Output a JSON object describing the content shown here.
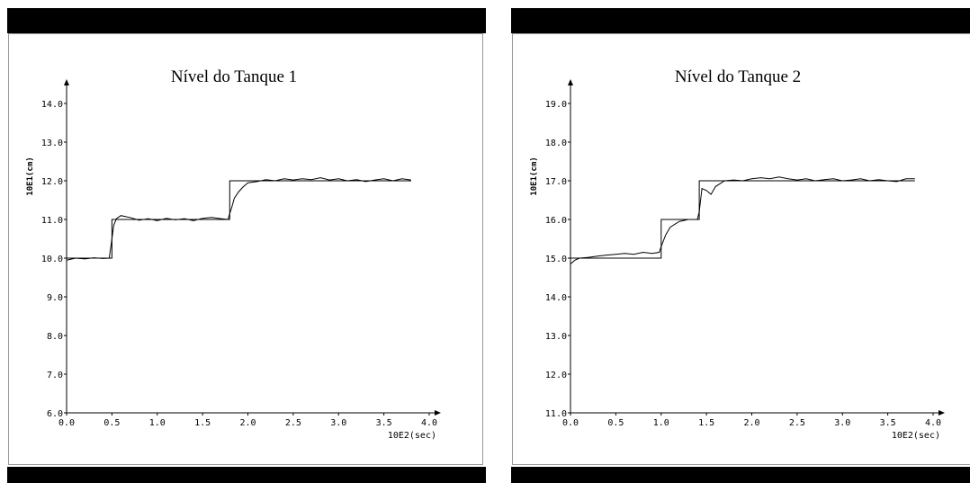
{
  "chart_data": [
    {
      "type": "line",
      "title": "Nível do Tanque 1",
      "ylabel": "10E1(cm)",
      "xlabel": "10E2(sec)",
      "xlim": [
        0.0,
        4.0
      ],
      "ylim": [
        6.0,
        14.0
      ],
      "x_ticks": [
        "0.0",
        "0.5",
        "1.0",
        "1.5",
        "2.0",
        "2.5",
        "3.0",
        "3.5",
        "4.0"
      ],
      "y_ticks": [
        "6.0",
        "7.0",
        "8.0",
        "9.0",
        "10.0",
        "11.0",
        "12.0",
        "13.0",
        "14.0"
      ],
      "grid": false,
      "series": [
        {
          "role": "setpoint",
          "x": [
            0.0,
            0.5,
            0.5,
            1.8,
            1.8,
            3.8
          ],
          "y": [
            10.0,
            10.0,
            11.0,
            11.0,
            12.0,
            12.0
          ]
        },
        {
          "role": "measured",
          "x": [
            0.0,
            0.1,
            0.2,
            0.3,
            0.4,
            0.47,
            0.5,
            0.52,
            0.55,
            0.6,
            0.7,
            0.8,
            0.9,
            1.0,
            1.1,
            1.2,
            1.3,
            1.4,
            1.5,
            1.6,
            1.7,
            1.78,
            1.8,
            1.82,
            1.85,
            1.9,
            1.95,
            2.0,
            2.1,
            2.2,
            2.3,
            2.4,
            2.5,
            2.6,
            2.7,
            2.8,
            2.9,
            3.0,
            3.1,
            3.2,
            3.3,
            3.4,
            3.5,
            3.6,
            3.7,
            3.8
          ],
          "y": [
            9.95,
            10.0,
            9.98,
            10.01,
            9.99,
            10.0,
            10.5,
            10.85,
            11.02,
            11.1,
            11.05,
            10.98,
            11.02,
            10.97,
            11.03,
            10.99,
            11.02,
            10.97,
            11.03,
            11.05,
            11.02,
            11.0,
            11.15,
            11.3,
            11.55,
            11.72,
            11.85,
            11.95,
            11.98,
            12.03,
            12.0,
            12.05,
            12.02,
            12.05,
            12.03,
            12.08,
            12.02,
            12.05,
            12.0,
            12.03,
            11.98,
            12.02,
            12.05,
            12.0,
            12.05,
            12.02
          ]
        }
      ]
    },
    {
      "type": "line",
      "title": "Nível do Tanque 2",
      "ylabel": "10E1(cm)",
      "xlabel": "10E2(sec)",
      "xlim": [
        0.0,
        4.0
      ],
      "ylim": [
        11.0,
        19.0
      ],
      "x_ticks": [
        "0.0",
        "0.5",
        "1.0",
        "1.5",
        "2.0",
        "2.5",
        "3.0",
        "3.5",
        "4.0"
      ],
      "y_ticks": [
        "11.0",
        "12.0",
        "13.0",
        "14.0",
        "15.0",
        "16.0",
        "17.0",
        "18.0",
        "19.0"
      ],
      "grid": false,
      "series": [
        {
          "role": "setpoint",
          "x": [
            0.0,
            1.0,
            1.0,
            1.42,
            1.42,
            3.8
          ],
          "y": [
            15.0,
            15.0,
            16.0,
            16.0,
            17.0,
            17.0
          ]
        },
        {
          "role": "measured",
          "x": [
            0.0,
            0.05,
            0.1,
            0.2,
            0.3,
            0.4,
            0.5,
            0.6,
            0.7,
            0.8,
            0.9,
            0.98,
            1.0,
            1.05,
            1.1,
            1.2,
            1.3,
            1.4,
            1.42,
            1.45,
            1.5,
            1.55,
            1.6,
            1.7,
            1.8,
            1.9,
            2.0,
            2.1,
            2.2,
            2.3,
            2.4,
            2.5,
            2.6,
            2.7,
            2.8,
            2.9,
            3.0,
            3.1,
            3.2,
            3.3,
            3.4,
            3.5,
            3.6,
            3.7,
            3.8
          ],
          "y": [
            14.85,
            14.95,
            15.0,
            15.02,
            15.05,
            15.08,
            15.1,
            15.12,
            15.1,
            15.15,
            15.12,
            15.15,
            15.3,
            15.6,
            15.8,
            15.95,
            16.0,
            16.0,
            16.2,
            16.8,
            16.75,
            16.65,
            16.85,
            17.0,
            17.02,
            17.0,
            17.05,
            17.08,
            17.05,
            17.1,
            17.05,
            17.02,
            17.05,
            17.0,
            17.03,
            17.05,
            17.0,
            17.02,
            17.05,
            17.0,
            17.03,
            17.0,
            16.98,
            17.05,
            17.05
          ]
        }
      ]
    }
  ]
}
